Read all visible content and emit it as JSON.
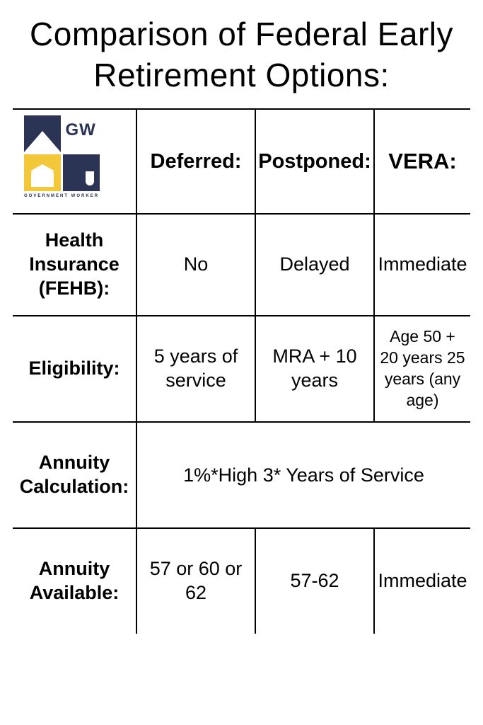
{
  "title": "Comparison of Federal Early Retirement Options:",
  "logo": {
    "initials": "GW",
    "caption": "GOVERNMENT WORKER",
    "colors": {
      "navy": "#2b3454",
      "yellow": "#f2c73a",
      "white": "#ffffff"
    }
  },
  "columns": {
    "deferred": "Deferred:",
    "postponed": "Postponed:",
    "vera": "VERA:"
  },
  "rows": {
    "health": {
      "label": "Health Insurance (FEHB):",
      "deferred": "No",
      "postponed": "Delayed",
      "vera": "Immediate"
    },
    "eligibility": {
      "label": "Eligibility:",
      "deferred": "5 years of service",
      "postponed": "MRA + 10 years",
      "vera": "Age 50 + 20 years 25 years (any age)"
    },
    "annuity_calc": {
      "label": "Annuity Calculation:",
      "merged": "1%*High 3* Years of Service"
    },
    "annuity_avail": {
      "label": "Annuity Available:",
      "deferred": "57 or 60 or 62",
      "postponed": "57-62",
      "vera": "Immediate"
    }
  }
}
